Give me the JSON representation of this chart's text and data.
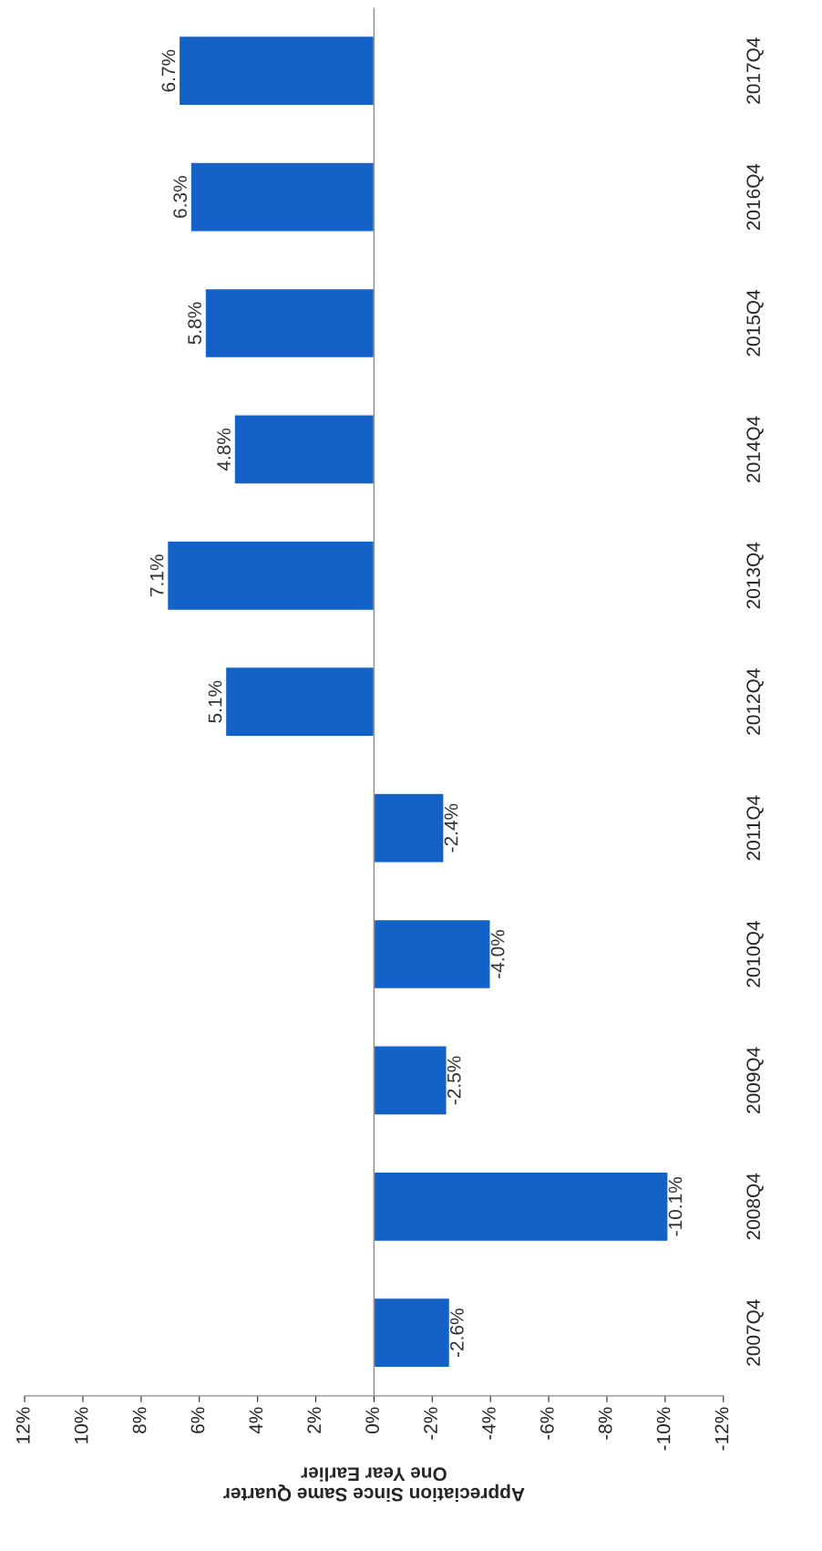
{
  "chart_data": {
    "type": "bar",
    "orientation": "horizontal",
    "xlabel": "Appreciation Since Same Quarter\nOne Year Earlier",
    "categories": [
      "2017Q4",
      "2016Q4",
      "2015Q4",
      "2014Q4",
      "2013Q4",
      "2012Q4",
      "2011Q4",
      "2010Q4",
      "2009Q4",
      "2008Q4",
      "2007Q4"
    ],
    "values": [
      6.7,
      6.3,
      5.8,
      4.8,
      7.1,
      5.1,
      -2.4,
      -4.0,
      -2.5,
      -10.1,
      -2.6
    ],
    "value_labels": [
      "6.7%",
      "6.3%",
      "5.8%",
      "4.8%",
      "7.1%",
      "5.1%",
      "-2.4%",
      "-4.0%",
      "-2.5%",
      "-10.1%",
      "-2.6%"
    ],
    "color": "#1462c8",
    "xlim": [
      12,
      -12
    ],
    "xticks": [
      {
        "value": 12,
        "label": "12%"
      },
      {
        "value": 10,
        "label": "10%"
      },
      {
        "value": 8,
        "label": "8%"
      },
      {
        "value": 6,
        "label": "6%"
      },
      {
        "value": 4,
        "label": "4%"
      },
      {
        "value": 2,
        "label": "2%"
      },
      {
        "value": 0,
        "label": "0%"
      },
      {
        "value": -2,
        "label": "-2%"
      },
      {
        "value": -4,
        "label": "-4%"
      },
      {
        "value": -6,
        "label": "-6%"
      },
      {
        "value": -8,
        "label": "-8%"
      },
      {
        "value": -10,
        "label": "-10%"
      },
      {
        "value": -12,
        "label": "-12%"
      }
    ],
    "ref_lines": [
      {
        "axis": "x",
        "value": 0,
        "color": "#888888"
      }
    ],
    "grid": false,
    "legend": false
  }
}
